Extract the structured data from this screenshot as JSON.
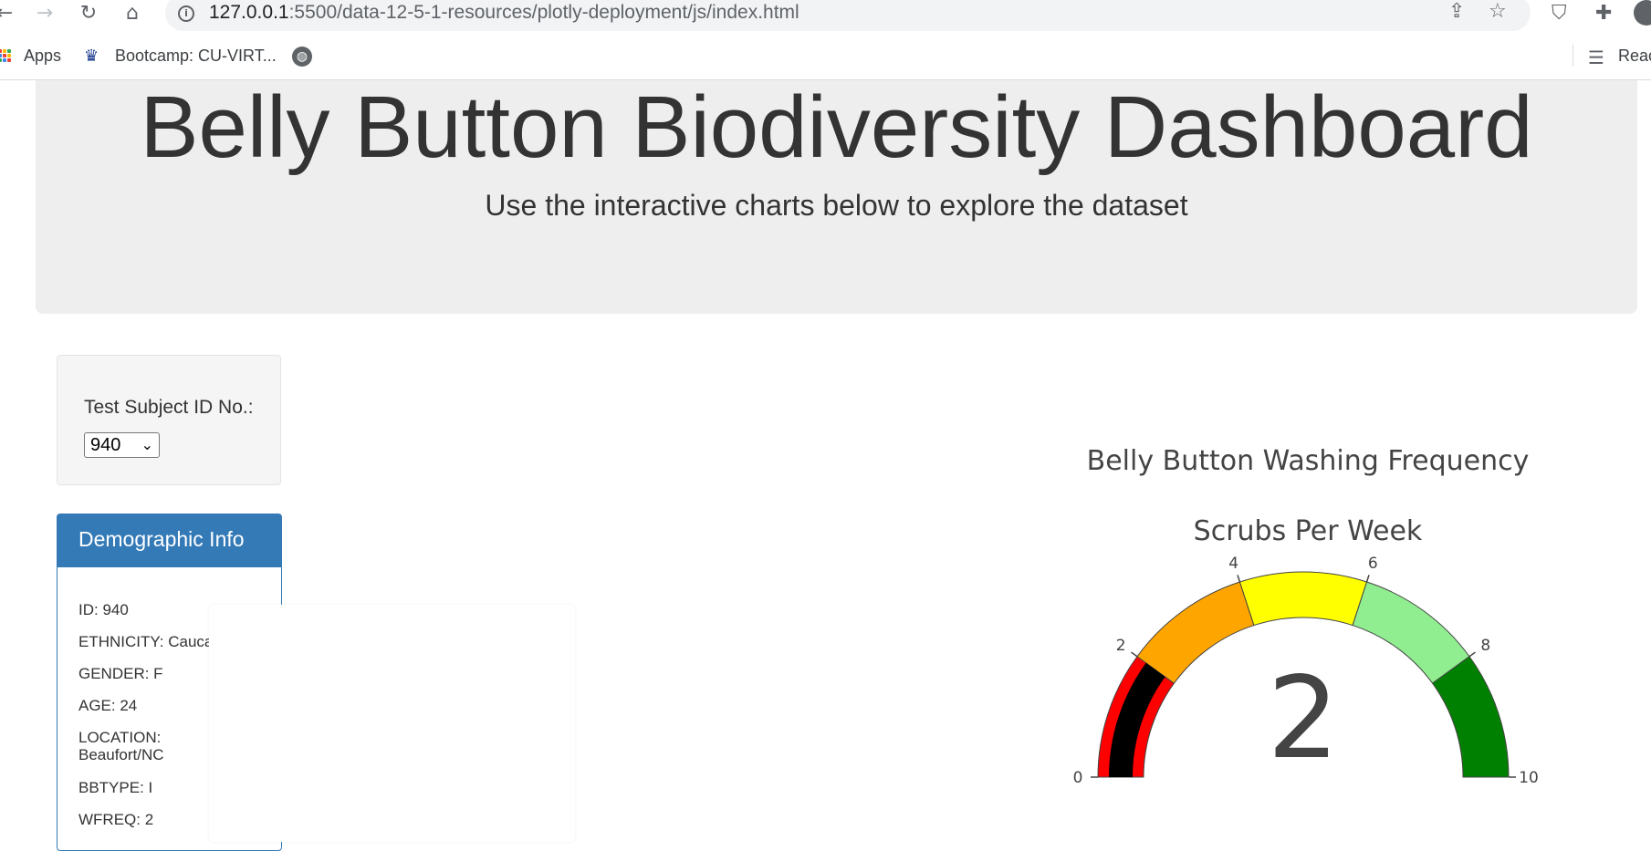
{
  "browser": {
    "url_host": "127.0.0.1",
    "url_rest": ":5500/data-12-5-1-resources/plotly-deployment/js/index.html",
    "bookmarks": [
      {
        "label": "Apps"
      },
      {
        "label": "Bootcamp: CU-VIRT..."
      },
      {
        "label": ""
      }
    ],
    "reading_list_label": "Reac"
  },
  "header": {
    "title": "Belly Button Biodiversity Dashboard",
    "subtitle": "Use the interactive charts below to explore the dataset"
  },
  "selector": {
    "label": "Test Subject ID No.:",
    "selected": "940"
  },
  "demographic": {
    "heading": "Demographic Info",
    "rows": [
      "ID: 940",
      "ETHNICITY: Caucasian",
      "GENDER: F",
      "AGE: 24",
      "LOCATION: Beaufort/NC",
      "BBTYPE: I",
      "WFREQ: 2"
    ]
  },
  "chart_data": {
    "type": "gauge",
    "title": "Belly Button Washing Frequency",
    "subtitle": "Scrubs Per Week",
    "value": 2,
    "range": [
      0,
      10
    ],
    "ticks": [
      "0",
      "2",
      "4",
      "6",
      "8",
      "10"
    ],
    "steps": [
      {
        "range": [
          0,
          2
        ],
        "color": "#ff0000"
      },
      {
        "range": [
          2,
          4
        ],
        "color": "#ffa500"
      },
      {
        "range": [
          4,
          6
        ],
        "color": "#ffff00"
      },
      {
        "range": [
          6,
          8
        ],
        "color": "#90ee90"
      },
      {
        "range": [
          8,
          10
        ],
        "color": "#008000"
      }
    ],
    "bar_color": "#000000"
  }
}
